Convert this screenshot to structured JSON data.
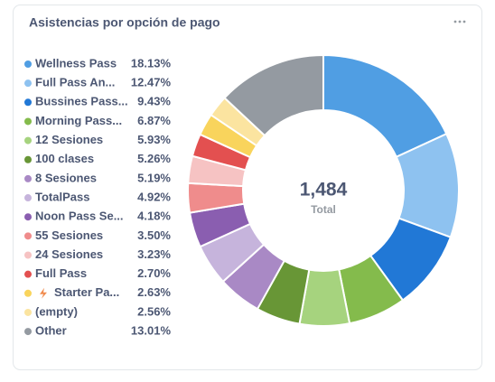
{
  "chart_data": {
    "type": "donut",
    "title": "Asistencias por opción de pago",
    "categories": [
      "Wellness Pass",
      "Full Pass An...",
      "Bussines Pass...",
      "Morning Pass...",
      "12 Sesiones",
      "100 clases",
      "8 Sesiones",
      "TotalPass",
      "Noon Pass Se...",
      "55 Sesiones",
      "24 Sesiones",
      "Full Pass",
      "Starter Pa...",
      "(empty)",
      "Other"
    ],
    "values": [
      18.13,
      12.47,
      9.43,
      6.87,
      5.93,
      5.26,
      5.19,
      4.92,
      4.18,
      3.5,
      3.23,
      2.7,
      2.63,
      2.56,
      13.01
    ],
    "value_labels": [
      "18.13%",
      "12.47%",
      "9.43%",
      "6.87%",
      "5.93%",
      "5.26%",
      "5.19%",
      "4.92%",
      "4.18%",
      "3.50%",
      "3.23%",
      "2.70%",
      "2.63%",
      "2.56%",
      "13.01%"
    ],
    "colors": [
      "#509ee3",
      "#8ec2f0",
      "#2178d6",
      "#84bb4c",
      "#a6d37e",
      "#689636",
      "#a989c5",
      "#c6b4dc",
      "#8a5eb0",
      "#ef8c8c",
      "#f6c3c3",
      "#e35050",
      "#f9d45c",
      "#fbe4a0",
      "#949aa1"
    ],
    "total": {
      "value": 1484,
      "label": "1,484"
    },
    "total_label": "Total"
  }
}
